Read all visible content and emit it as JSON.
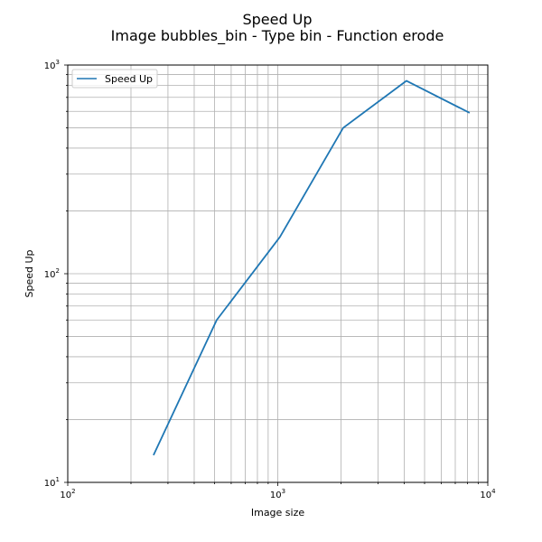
{
  "chart_data": {
    "type": "line",
    "title": "Speed Up",
    "subtitle": "Image bubbles_bin - Type bin - Function erode",
    "xlabel": "Image size",
    "ylabel": "Speed Up",
    "xscale": "log",
    "yscale": "log",
    "xlim": [
      100,
      10000
    ],
    "ylim": [
      10,
      1000
    ],
    "grid": true,
    "grid_which": "both",
    "legend_position": "top-left",
    "x_ticks": [
      {
        "base": "10",
        "exp": "2"
      },
      {
        "base": "10",
        "exp": "3"
      },
      {
        "base": "10",
        "exp": "4"
      }
    ],
    "y_ticks": [
      {
        "base": "10",
        "exp": "1"
      },
      {
        "base": "10",
        "exp": "2"
      },
      {
        "base": "10",
        "exp": "3"
      }
    ],
    "series": [
      {
        "name": "Speed Up",
        "color": "#1f77b4",
        "x": [
          256,
          512,
          1024,
          2048,
          4096,
          8192
        ],
        "y": [
          13.5,
          60,
          150,
          500,
          840,
          590
        ]
      }
    ]
  }
}
